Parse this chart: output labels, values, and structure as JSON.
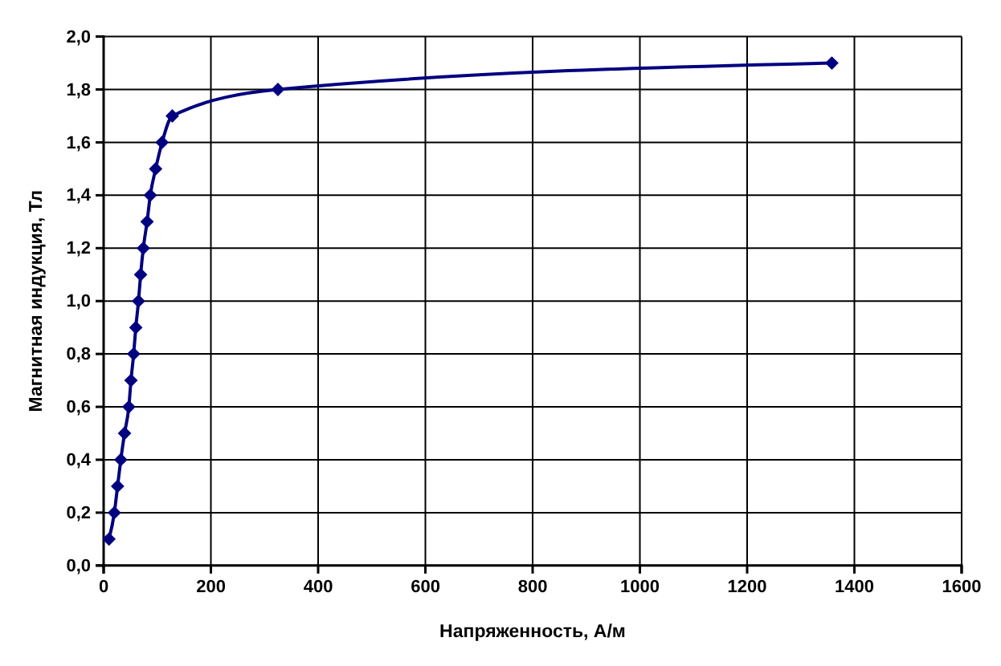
{
  "chart_data": {
    "type": "line",
    "xlabel": "Напряженность, А/м",
    "ylabel": "Магнитная индукция, Тл",
    "series": [
      {
        "color": "#000080",
        "x": [
          10,
          20,
          26,
          32,
          39,
          47,
          51,
          56,
          60,
          65,
          69,
          74,
          81,
          87,
          97,
          109,
          128,
          325,
          1358
        ],
        "values": [
          0.1,
          0.2,
          0.3,
          0.4,
          0.5,
          0.6,
          0.7,
          0.8,
          0.9,
          1.0,
          1.1,
          1.2,
          1.3,
          1.4,
          1.5,
          1.6,
          1.7,
          1.8,
          1.9
        ]
      }
    ],
    "xlim": [
      0,
      1600
    ],
    "xticks": [
      0,
      200,
      400,
      600,
      800,
      1000,
      1200,
      1400,
      1600
    ],
    "ylim": [
      0,
      2
    ],
    "yticks": [
      {
        "value": 0,
        "label": "0,0"
      },
      {
        "value": 0.2,
        "label": "0,2"
      },
      {
        "value": 0.4,
        "label": "0,4"
      },
      {
        "value": 0.6,
        "label": "0,6"
      },
      {
        "value": 0.8,
        "label": "0,8"
      },
      {
        "value": 1.0,
        "label": "1,0"
      },
      {
        "value": 1.2,
        "label": "1,2"
      },
      {
        "value": 1.4,
        "label": "1,4"
      },
      {
        "value": 1.6,
        "label": "1,6"
      },
      {
        "value": 1.8,
        "label": "1,8"
      },
      {
        "value": 2.0,
        "label": "2,0"
      }
    ],
    "grid": true,
    "marker": "diamond",
    "line_style": "solid"
  }
}
